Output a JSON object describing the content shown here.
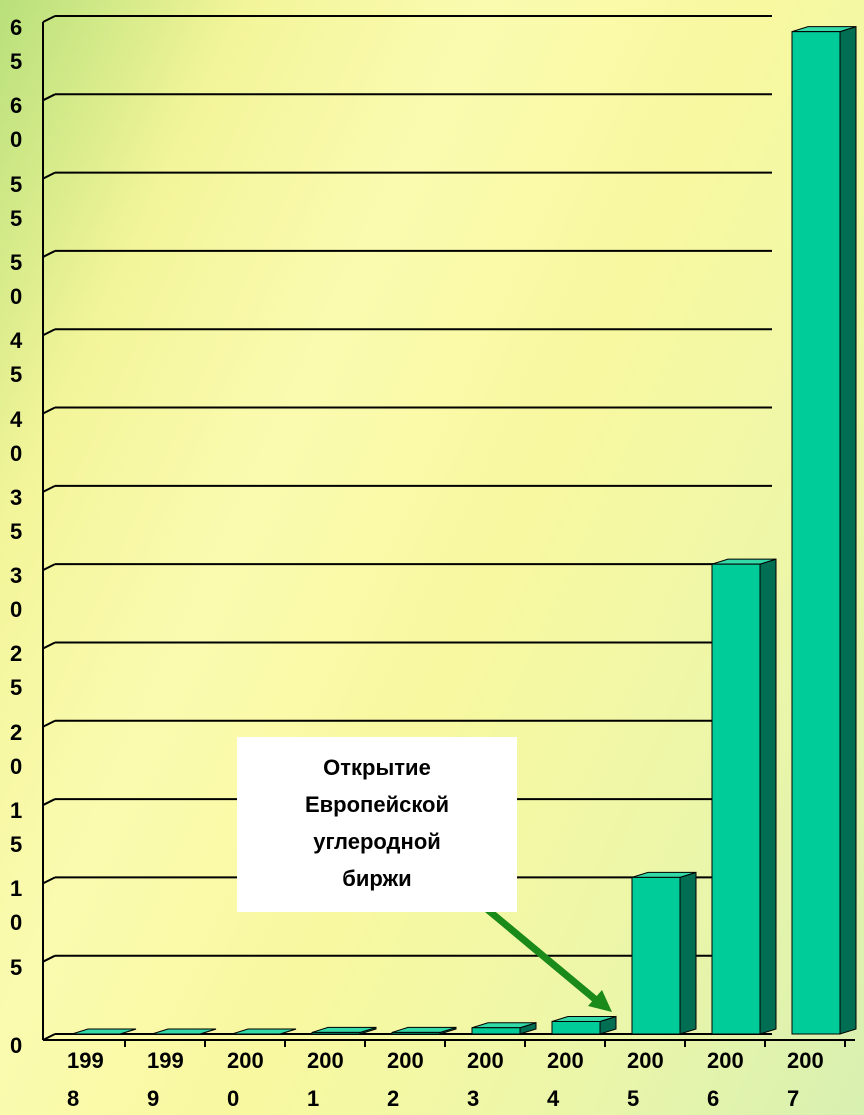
{
  "chart_data": {
    "type": "bar",
    "categories": [
      "1998",
      "1999",
      "2000",
      "2001",
      "2002",
      "2003",
      "2004",
      "2005",
      "2006",
      "2007"
    ],
    "values": [
      0,
      0,
      0,
      0.1,
      0.1,
      0.4,
      0.8,
      10,
      30,
      64
    ],
    "color": "#00cc99",
    "ylim": [
      0,
      65
    ],
    "yticks": [
      0,
      5,
      10,
      15,
      20,
      25,
      30,
      35,
      40,
      45,
      50,
      55,
      60,
      65
    ],
    "grid": true,
    "annotation": {
      "lines": [
        "Открытие",
        "Европейской",
        "углеродной",
        "биржи"
      ],
      "arrow_color": "#1a8a1a"
    }
  }
}
